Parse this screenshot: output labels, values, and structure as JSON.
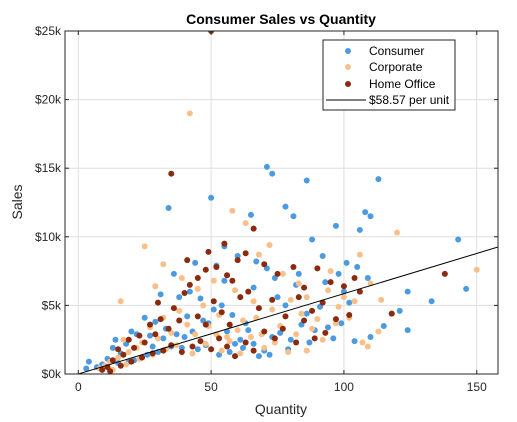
{
  "chart_data": {
    "type": "scatter",
    "title": "Consumer Sales vs Quantity",
    "xlabel": "Quantity",
    "ylabel": "Sales",
    "xlim": [
      -5,
      158
    ],
    "ylim": [
      0,
      25000
    ],
    "x_ticks": [
      0,
      50,
      100,
      150
    ],
    "x_tick_labels": [
      "0",
      "50",
      "100",
      "150"
    ],
    "y_ticks": [
      0,
      5000,
      10000,
      15000,
      20000,
      25000
    ],
    "y_tick_labels": [
      "$0k",
      "$5k",
      "$10k",
      "$15k",
      "$20k",
      "$25k"
    ],
    "grid": true,
    "legend_position": "top-right",
    "series": [
      {
        "name": "Consumer",
        "color": "#4c9be0",
        "points": [
          [
            34,
            12100
          ],
          [
            50,
            12850
          ],
          [
            55,
            9300
          ],
          [
            60,
            8600
          ],
          [
            65,
            11600
          ],
          [
            71,
            15100
          ],
          [
            73,
            14600
          ],
          [
            78,
            12200
          ],
          [
            81,
            11500
          ],
          [
            86,
            14100
          ],
          [
            88,
            9800
          ],
          [
            97,
            10800
          ],
          [
            106,
            10500
          ],
          [
            108,
            11800
          ],
          [
            110,
            11500
          ],
          [
            113,
            14200
          ],
          [
            143,
            9800
          ],
          [
            146,
            6200
          ],
          [
            133,
            5300
          ],
          [
            124,
            6000
          ],
          [
            118,
            4400
          ],
          [
            124,
            3200
          ],
          [
            110,
            2700
          ],
          [
            104,
            2400
          ],
          [
            96,
            2600
          ],
          [
            89,
            3200
          ],
          [
            86,
            4400
          ],
          [
            82,
            6500
          ],
          [
            78,
            5000
          ],
          [
            75,
            5600
          ],
          [
            71,
            7700
          ],
          [
            67,
            8200
          ],
          [
            64,
            3200
          ],
          [
            61,
            2500
          ],
          [
            58,
            4300
          ],
          [
            55,
            6800
          ],
          [
            52,
            7900
          ],
          [
            49,
            3700
          ],
          [
            46,
            5500
          ],
          [
            44,
            8100
          ],
          [
            41,
            4200
          ],
          [
            38,
            5600
          ],
          [
            36,
            7300
          ],
          [
            33,
            3300
          ],
          [
            31,
            5800
          ],
          [
            29,
            3800
          ],
          [
            27,
            2800
          ],
          [
            25,
            4100
          ],
          [
            22,
            2900
          ],
          [
            20,
            3100
          ],
          [
            18,
            2200
          ],
          [
            16,
            1500
          ],
          [
            13,
            1900
          ],
          [
            11,
            1100
          ],
          [
            9,
            700
          ],
          [
            7,
            500
          ],
          [
            4,
            900
          ],
          [
            3,
            400
          ],
          [
            24,
            1200
          ],
          [
            30,
            1600
          ],
          [
            35,
            2000
          ],
          [
            40,
            2700
          ],
          [
            45,
            1800
          ],
          [
            48,
            2100
          ],
          [
            53,
            1400
          ],
          [
            57,
            1600
          ],
          [
            62,
            1900
          ],
          [
            66,
            2200
          ],
          [
            70,
            1700
          ],
          [
            73,
            2700
          ],
          [
            76,
            3000
          ],
          [
            80,
            2500
          ],
          [
            84,
            3600
          ],
          [
            91,
            4900
          ],
          [
            93,
            6700
          ],
          [
            98,
            7300
          ],
          [
            100,
            6000
          ],
          [
            102,
            5200
          ],
          [
            105,
            7800
          ],
          [
            99,
            3700
          ],
          [
            94,
            3400
          ],
          [
            87,
            2300
          ],
          [
            79,
            1800
          ],
          [
            72,
            1400
          ],
          [
            68,
            1300
          ],
          [
            63,
            3700
          ],
          [
            59,
            2200
          ],
          [
            56,
            3100
          ],
          [
            51,
            4700
          ],
          [
            47,
            3900
          ],
          [
            43,
            3100
          ],
          [
            39,
            1900
          ],
          [
            37,
            2900
          ],
          [
            32,
            2600
          ],
          [
            28,
            2000
          ],
          [
            26,
            1400
          ],
          [
            21,
            1000
          ],
          [
            19,
            900
          ],
          [
            15,
            800
          ],
          [
            14,
            2500
          ],
          [
            42,
            6000
          ],
          [
            54,
            5000
          ],
          [
            66,
            6300
          ],
          [
            74,
            7000
          ],
          [
            83,
            7300
          ],
          [
            92,
            8600
          ],
          [
            101,
            8100
          ],
          [
            109,
            7000
          ],
          [
            115,
            3500
          ],
          [
            121,
            4600
          ]
        ]
      },
      {
        "name": "Corporate",
        "color": "#f7c08a",
        "points": [
          [
            42,
            19000
          ],
          [
            25,
            9300
          ],
          [
            32,
            8000
          ],
          [
            39,
            7000
          ],
          [
            45,
            6200
          ],
          [
            51,
            6800
          ],
          [
            58,
            11900
          ],
          [
            63,
            11000
          ],
          [
            68,
            8700
          ],
          [
            72,
            9400
          ],
          [
            77,
            7300
          ],
          [
            83,
            6600
          ],
          [
            86,
            5600
          ],
          [
            95,
            7500
          ],
          [
            100,
            5600
          ],
          [
            106,
            8700
          ],
          [
            120,
            10300
          ],
          [
            150,
            7600
          ],
          [
            113,
            3100
          ],
          [
            107,
            2300
          ],
          [
            102,
            4100
          ],
          [
            97,
            3700
          ],
          [
            92,
            2500
          ],
          [
            88,
            3300
          ],
          [
            84,
            4400
          ],
          [
            80,
            5400
          ],
          [
            76,
            3500
          ],
          [
            73,
            4700
          ],
          [
            69,
            2900
          ],
          [
            66,
            5300
          ],
          [
            62,
            3900
          ],
          [
            59,
            6100
          ],
          [
            56,
            2700
          ],
          [
            53,
            4300
          ],
          [
            49,
            3500
          ],
          [
            47,
            5000
          ],
          [
            44,
            2900
          ],
          [
            41,
            3600
          ],
          [
            38,
            4600
          ],
          [
            35,
            3000
          ],
          [
            32,
            4100
          ],
          [
            30,
            2600
          ],
          [
            27,
            3400
          ],
          [
            24,
            2300
          ],
          [
            22,
            1900
          ],
          [
            19,
            1600
          ],
          [
            17,
            2500
          ],
          [
            15,
            1200
          ],
          [
            12,
            900
          ],
          [
            10,
            600
          ],
          [
            8,
            400
          ],
          [
            13,
            300
          ],
          [
            18,
            700
          ],
          [
            23,
            1100
          ],
          [
            28,
            1400
          ],
          [
            33,
            1800
          ],
          [
            37,
            2100
          ],
          [
            43,
            1500
          ],
          [
            48,
            2200
          ],
          [
            54,
            1700
          ],
          [
            57,
            2400
          ],
          [
            61,
            1500
          ],
          [
            65,
            2700
          ],
          [
            70,
            1900
          ],
          [
            74,
            2300
          ],
          [
            79,
            1600
          ],
          [
            82,
            2900
          ],
          [
            90,
            4000
          ],
          [
            94,
            6100
          ],
          [
            98,
            4900
          ],
          [
            104,
            5300
          ],
          [
            110,
            6600
          ],
          [
            114,
            5400
          ],
          [
            16,
            5300
          ],
          [
            29,
            6400
          ],
          [
            52,
            2900
          ],
          [
            60,
            3200
          ],
          [
            67,
            4100
          ],
          [
            86,
            1700
          ],
          [
            109,
            2000
          ]
        ]
      },
      {
        "name": "Home Office",
        "color": "#8b2a0e",
        "points": [
          [
            50,
            25000
          ],
          [
            35,
            14600
          ],
          [
            49,
            8900
          ],
          [
            52,
            7800
          ],
          [
            56,
            7200
          ],
          [
            60,
            8300
          ],
          [
            66,
            10600
          ],
          [
            70,
            8000
          ],
          [
            75,
            7300
          ],
          [
            81,
            7800
          ],
          [
            85,
            6300
          ],
          [
            90,
            7700
          ],
          [
            95,
            6700
          ],
          [
            100,
            6400
          ],
          [
            104,
            7000
          ],
          [
            118,
            4400
          ],
          [
            138,
            7300
          ],
          [
            92,
            5200
          ],
          [
            88,
            4600
          ],
          [
            83,
            5600
          ],
          [
            78,
            4200
          ],
          [
            73,
            5400
          ],
          [
            68,
            4800
          ],
          [
            64,
            6000
          ],
          [
            61,
            5600
          ],
          [
            57,
            3600
          ],
          [
            54,
            4500
          ],
          [
            51,
            5300
          ],
          [
            48,
            3600
          ],
          [
            45,
            4200
          ],
          [
            42,
            6500
          ],
          [
            40,
            5900
          ],
          [
            38,
            3900
          ],
          [
            36,
            4800
          ],
          [
            34,
            3300
          ],
          [
            31,
            4000
          ],
          [
            29,
            2900
          ],
          [
            27,
            3600
          ],
          [
            25,
            2300
          ],
          [
            23,
            2800
          ],
          [
            21,
            1900
          ],
          [
            19,
            2500
          ],
          [
            17,
            1400
          ],
          [
            15,
            1800
          ],
          [
            13,
            1000
          ],
          [
            11,
            500
          ],
          [
            9,
            300
          ],
          [
            12,
            200
          ],
          [
            16,
            600
          ],
          [
            20,
            900
          ],
          [
            24,
            1200
          ],
          [
            28,
            1500
          ],
          [
            32,
            1700
          ],
          [
            35,
            2100
          ],
          [
            39,
            1600
          ],
          [
            43,
            2000
          ],
          [
            46,
            2400
          ],
          [
            50,
            1800
          ],
          [
            53,
            2600
          ],
          [
            56,
            2000
          ],
          [
            59,
            1300
          ],
          [
            63,
            2300
          ],
          [
            66,
            1700
          ],
          [
            70,
            3100
          ],
          [
            74,
            2600
          ],
          [
            77,
            3300
          ],
          [
            82,
            2300
          ],
          [
            85,
            3900
          ],
          [
            89,
            2600
          ],
          [
            93,
            3000
          ],
          [
            97,
            4000
          ],
          [
            102,
            4300
          ],
          [
            45,
            7000
          ],
          [
            58,
            6800
          ],
          [
            63,
            8800
          ],
          [
            30,
            5200
          ],
          [
            41,
            8300
          ],
          [
            48,
            7600
          ],
          [
            55,
            9500
          ],
          [
            106,
            6000
          ]
        ]
      }
    ],
    "trendline": {
      "label": "$58.57 per unit",
      "slope": 58.57,
      "intercept": 0,
      "color": "#000000"
    }
  }
}
